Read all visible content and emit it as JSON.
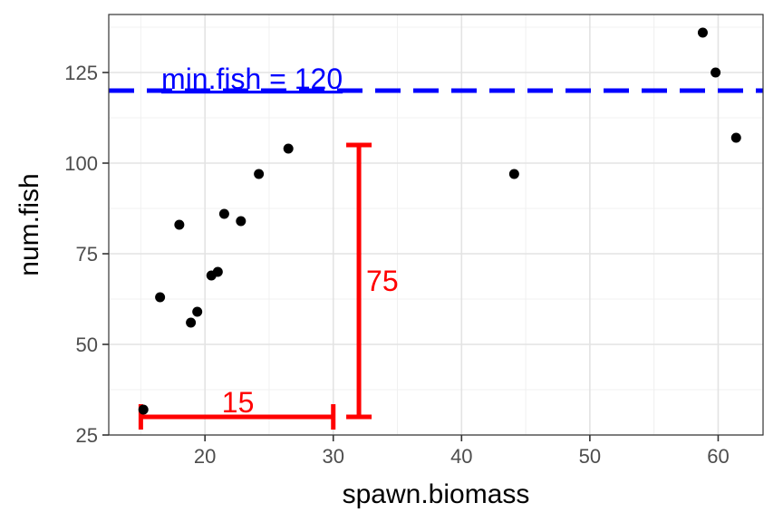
{
  "chart_data": {
    "type": "scatter",
    "xlabel": "spawn.biomass",
    "ylabel": "num.fish",
    "xlim": [
      12.5,
      63.5
    ],
    "ylim": [
      25,
      141
    ],
    "x_ticks": [
      20,
      30,
      40,
      50,
      60
    ],
    "y_ticks": [
      25,
      50,
      75,
      100,
      125
    ],
    "grid": true,
    "points": [
      {
        "x": 15.2,
        "y": 32
      },
      {
        "x": 16.5,
        "y": 63
      },
      {
        "x": 18.0,
        "y": 83
      },
      {
        "x": 18.9,
        "y": 56
      },
      {
        "x": 19.4,
        "y": 59
      },
      {
        "x": 20.5,
        "y": 69
      },
      {
        "x": 21.0,
        "y": 70
      },
      {
        "x": 21.5,
        "y": 86
      },
      {
        "x": 22.8,
        "y": 84
      },
      {
        "x": 24.2,
        "y": 97
      },
      {
        "x": 26.5,
        "y": 104
      },
      {
        "x": 44.1,
        "y": 97
      },
      {
        "x": 58.8,
        "y": 136
      },
      {
        "x": 59.8,
        "y": 125
      },
      {
        "x": 61.4,
        "y": 107
      }
    ],
    "reference_line": {
      "y": 120,
      "label": "min.fish = 120",
      "color": "#0000ff",
      "style": "dashed"
    },
    "annotations": [
      {
        "label": "15",
        "orientation": "horizontal",
        "x_from": 15,
        "x_to": 30,
        "at_y": 30,
        "color": "#ff0000"
      },
      {
        "label": "75",
        "orientation": "vertical",
        "y_from": 30,
        "y_to": 105,
        "at_x": 32,
        "color": "#ff0000"
      }
    ]
  }
}
